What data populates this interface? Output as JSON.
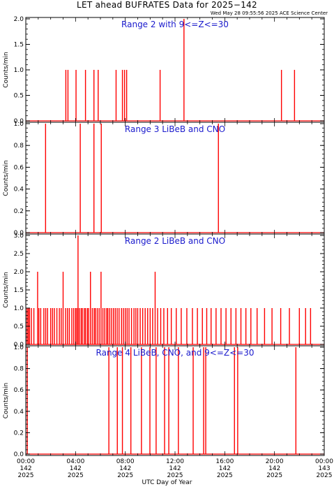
{
  "title": "LET ahead BUFRATES Data for 2025−142",
  "timestamp": "Wed May 28 09:55:56 2025 ACE Science Center",
  "xlabel": "UTC Day of Year",
  "colors": {
    "data": "#ff0000",
    "panel_title": "#1a1acd",
    "axes": "#000000"
  },
  "chart_data": [
    {
      "type": "line",
      "title": "Range 2 with 9<=Z<=30",
      "ylabel": "Counts/min",
      "xlim": [
        0,
        24
      ],
      "ylim": [
        0,
        2.0
      ],
      "yticks": [
        "0.0",
        "0.5",
        "1.0",
        "1.5",
        "2.0"
      ],
      "ytick_values": [
        0,
        0.5,
        1.0,
        1.5,
        2.0
      ],
      "x": [
        3.22,
        3.39,
        4.04,
        4.8,
        5.48,
        5.82,
        7.26,
        7.77,
        7.94,
        8.11,
        10.8,
        12.72,
        20.56,
        21.61
      ],
      "y": [
        1,
        1,
        1,
        1,
        1,
        1,
        1,
        1,
        1,
        1,
        1,
        2,
        1,
        1
      ]
    },
    {
      "type": "line",
      "title": "Range 3 LiBeB and CNO",
      "ylabel": "Counts/min",
      "xlim": [
        0,
        24
      ],
      "ylim": [
        0,
        1.0
      ],
      "yticks": [
        "0.0",
        "0.2",
        "0.4",
        "0.6",
        "0.8",
        "1.0"
      ],
      "ytick_values": [
        0,
        0.2,
        0.4,
        0.6,
        0.8,
        1.0
      ],
      "x": [
        1.59,
        4.38,
        5.48,
        6.07,
        15.49
      ],
      "y": [
        1,
        1,
        1,
        1,
        1
      ]
    },
    {
      "type": "line",
      "title": "Range 2 LiBeB and CNO",
      "ylabel": "Counts/min",
      "xlim": [
        0,
        24
      ],
      "ylim": [
        0,
        3.0
      ],
      "yticks": [
        "0.0",
        "0.5",
        "1.0",
        "1.5",
        "2.0",
        "2.5",
        "3.0"
      ],
      "ytick_values": [
        0,
        0.5,
        1.0,
        1.5,
        2.0,
        2.5,
        3.0
      ],
      "x": [
        0.1,
        0.2,
        0.3,
        0.45,
        0.65,
        0.95,
        1.05,
        1.2,
        1.45,
        1.6,
        1.75,
        2.0,
        2.15,
        2.3,
        2.5,
        2.7,
        2.85,
        3.0,
        3.2,
        3.35,
        3.5,
        3.7,
        3.85,
        4.0,
        4.1,
        4.2,
        4.3,
        4.45,
        4.55,
        4.7,
        4.8,
        4.95,
        5.05,
        5.2,
        5.35,
        5.5,
        5.6,
        5.75,
        5.9,
        6.05,
        6.2,
        6.35,
        6.5,
        6.6,
        6.75,
        6.9,
        7.05,
        7.2,
        7.35,
        7.5,
        7.7,
        7.85,
        8.0,
        8.15,
        8.3,
        8.5,
        8.7,
        8.85,
        9.0,
        9.2,
        9.4,
        9.6,
        9.8,
        10.0,
        10.2,
        10.4,
        10.6,
        10.85,
        11.1,
        11.4,
        11.7,
        12.1,
        12.5,
        12.95,
        13.4,
        13.8,
        14.2,
        14.55,
        14.9,
        15.3,
        15.7,
        16.1,
        16.5,
        16.9,
        17.3,
        17.7,
        18.1,
        18.6,
        19.2,
        19.8,
        20.5,
        21.2,
        22.0,
        22.5,
        22.9
      ],
      "y": [
        1,
        1,
        1,
        1,
        1,
        2,
        1,
        1,
        1,
        1,
        1,
        1,
        1,
        1,
        1,
        1,
        1,
        2,
        1,
        1,
        1,
        1,
        1,
        1,
        1,
        3,
        1,
        1,
        1,
        1,
        1,
        1,
        1,
        2,
        1,
        1,
        1,
        1,
        1,
        2,
        1,
        1,
        1,
        1,
        1,
        1,
        1,
        1,
        1,
        1,
        1,
        1,
        1,
        1,
        1,
        1,
        1,
        1,
        1,
        1,
        1,
        1,
        1,
        1,
        1,
        2,
        1,
        1,
        1,
        1,
        1,
        1,
        1,
        1,
        1,
        1,
        1,
        1,
        1,
        1,
        1,
        1,
        1,
        1,
        1,
        1,
        1,
        1,
        1,
        1,
        1,
        1,
        1,
        1,
        1
      ]
    },
    {
      "type": "line",
      "title": "Range 4 LiBeB, CNO, and 9<=Z<=30",
      "ylabel": "Counts/min",
      "xlim": [
        0,
        24
      ],
      "ylim": [
        0,
        1.0
      ],
      "yticks": [
        "0.0",
        "0.2",
        "0.4",
        "0.6",
        "0.8",
        "1.0"
      ],
      "ytick_values": [
        0,
        0.2,
        0.4,
        0.6,
        0.8,
        1.0
      ],
      "x": [
        0.12,
        6.68,
        7.36,
        7.77,
        8.45,
        9.3,
        9.98,
        10.48,
        11.16,
        11.5,
        12.27,
        13.46,
        14.3,
        14.47,
        16.78,
        17.04,
        21.72
      ],
      "y": [
        1,
        1,
        1,
        1,
        1,
        1,
        1,
        1,
        1,
        1,
        1,
        1,
        1,
        1,
        1,
        1,
        1
      ]
    }
  ],
  "xaxis": {
    "ticks": [
      {
        "value": 0,
        "time": "00:00",
        "doy": "142",
        "year": "2025"
      },
      {
        "value": 4,
        "time": "04:00",
        "doy": "142",
        "year": "2025"
      },
      {
        "value": 8,
        "time": "08:00",
        "doy": "142",
        "year": "2025"
      },
      {
        "value": 12,
        "time": "12:00",
        "doy": "142",
        "year": "2025"
      },
      {
        "value": 16,
        "time": "16:00",
        "doy": "142",
        "year": "2025"
      },
      {
        "value": 20,
        "time": "20:00",
        "doy": "142",
        "year": "2025"
      },
      {
        "value": 24,
        "time": "00:00",
        "doy": "143",
        "year": "2025"
      }
    ]
  }
}
